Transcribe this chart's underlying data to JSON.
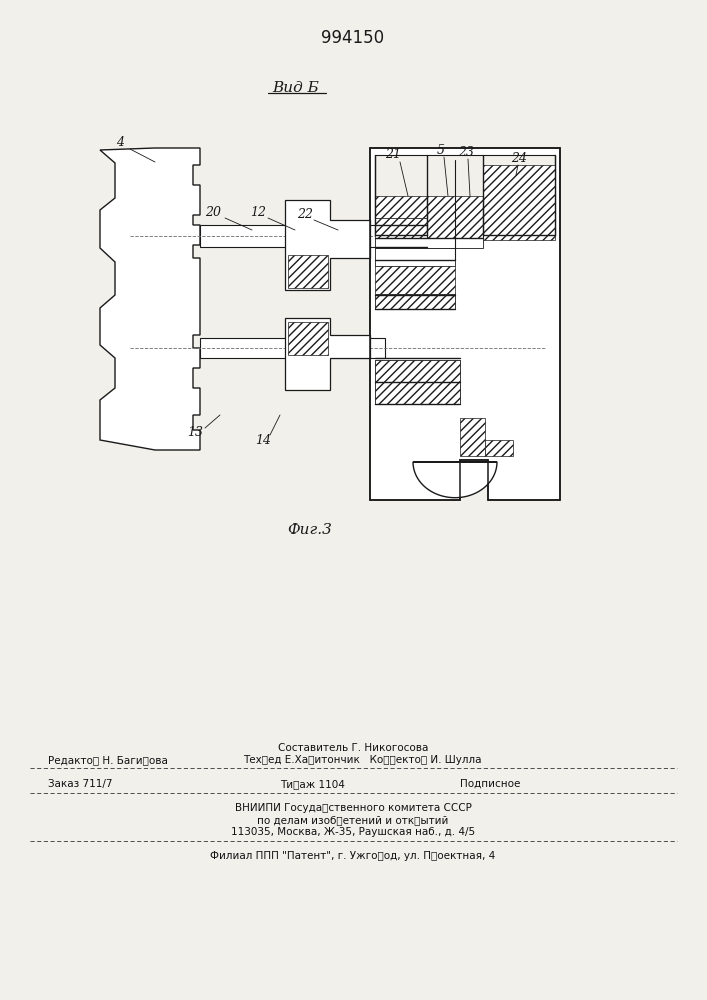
{
  "patent_number": "994150",
  "view_label": "Вид Б",
  "fig_label": "Фиг.3",
  "bg_color": "#f2f0eb",
  "line_color": "#1a1a1a",
  "footer": {
    "line1_center": "Составитель Г. Никогосова",
    "line1_left": "Редактоࢋ Н. Багиࢋова",
    "line1_right": "Техࢋед Е.Хаࢋитончик   Коࢋࢋектоࢋ И. Шулла",
    "line2_left": "Заказ 711/7",
    "line2_center": "Тиࢋаж 1104",
    "line2_right": "Подписное",
    "line3": "ВНИИПИ Госудаࢋственного комитета СССР",
    "line4": "по делам изобࢋетений и откࢋытий",
    "line5": "113035, Москва, Ж-35, Раушская наб., д. 4/5",
    "line6": "Филиал ППП \"Патент\", г. Ужгоࢋод, ул. Пࢋоектная, 4"
  }
}
